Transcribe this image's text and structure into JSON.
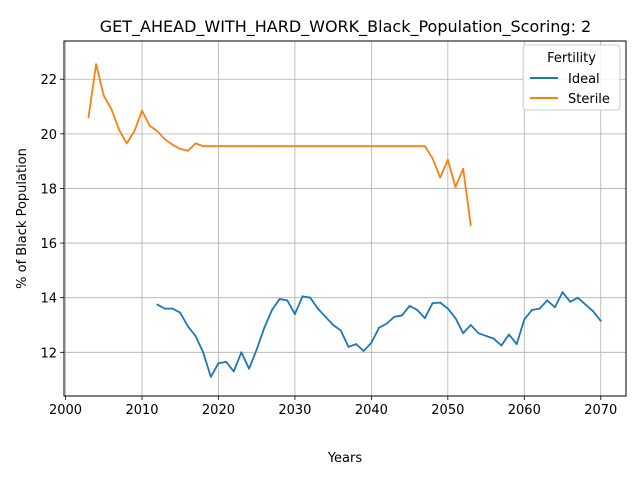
{
  "chart_data": {
    "type": "line",
    "title": "GET_AHEAD_WITH_HARD_WORK_Black_Population_Scoring: 2",
    "xlabel": "Years",
    "ylabel": "% of Black Population",
    "xlim": [
      1999.8,
      2073.3
    ],
    "ylim": [
      10.4,
      23.4
    ],
    "x_ticks": [
      2000,
      2010,
      2020,
      2030,
      2040,
      2050,
      2060,
      2070
    ],
    "y_ticks": [
      12,
      14,
      16,
      18,
      20,
      22
    ],
    "grid": true,
    "legend": {
      "title": "Fertility",
      "placement": "top-right"
    },
    "series": [
      {
        "name": "Ideal",
        "color": "#1f77b4",
        "x": [
          2012,
          2013,
          2014,
          2015,
          2016,
          2017,
          2018,
          2019,
          2020,
          2021,
          2022,
          2023,
          2024,
          2025,
          2026,
          2027,
          2028,
          2029,
          2030,
          2031,
          2032,
          2033,
          2034,
          2035,
          2036,
          2037,
          2038,
          2039,
          2040,
          2041,
          2042,
          2043,
          2044,
          2045,
          2046,
          2047,
          2048,
          2049,
          2050,
          2051,
          2052,
          2053,
          2054,
          2055,
          2056,
          2057,
          2058,
          2059,
          2060,
          2061,
          2062,
          2063,
          2064,
          2065,
          2066,
          2067,
          2068,
          2069,
          2070
        ],
        "y": [
          13.75,
          13.6,
          13.6,
          13.45,
          12.95,
          12.6,
          12.0,
          11.1,
          11.6,
          11.65,
          11.3,
          12.0,
          11.4,
          12.1,
          12.9,
          13.55,
          13.95,
          13.9,
          13.4,
          14.05,
          14.0,
          13.6,
          13.3,
          13.0,
          12.8,
          12.2,
          12.3,
          12.05,
          12.35,
          12.9,
          13.05,
          13.3,
          13.35,
          13.7,
          13.55,
          13.25,
          13.8,
          13.82,
          13.6,
          13.25,
          12.7,
          13.0,
          12.7,
          12.6,
          12.5,
          12.25,
          12.65,
          12.3,
          13.2,
          13.55,
          13.6,
          13.9,
          13.65,
          14.2,
          13.85,
          14.0,
          13.75,
          13.5,
          13.15
        ]
      },
      {
        "name": "Sterile",
        "color": "#ff7f0e",
        "x": [
          2003,
          2004,
          2005,
          2006,
          2007,
          2008,
          2009,
          2010,
          2011,
          2012,
          2013,
          2014,
          2015,
          2016,
          2017,
          2018,
          2019,
          2020,
          2021,
          2022,
          2023,
          2024,
          2025,
          2026,
          2027,
          2028,
          2029,
          2030,
          2031,
          2032,
          2033,
          2034,
          2035,
          2036,
          2037,
          2038,
          2039,
          2040,
          2041,
          2042,
          2043,
          2044,
          2045,
          2046,
          2047,
          2048,
          2049,
          2050,
          2051,
          2052,
          2053
        ],
        "y": [
          20.6,
          22.55,
          21.4,
          20.9,
          20.15,
          19.65,
          20.1,
          20.85,
          20.3,
          20.1,
          19.8,
          19.6,
          19.45,
          19.38,
          19.65,
          19.55,
          19.55,
          19.55,
          19.55,
          19.55,
          19.55,
          19.55,
          19.55,
          19.55,
          19.55,
          19.55,
          19.55,
          19.55,
          19.55,
          19.55,
          19.55,
          19.55,
          19.55,
          19.55,
          19.55,
          19.55,
          19.55,
          19.55,
          19.55,
          19.55,
          19.55,
          19.55,
          19.55,
          19.55,
          19.55,
          19.1,
          18.4,
          19.05,
          18.05,
          18.72,
          16.65
        ]
      }
    ]
  }
}
